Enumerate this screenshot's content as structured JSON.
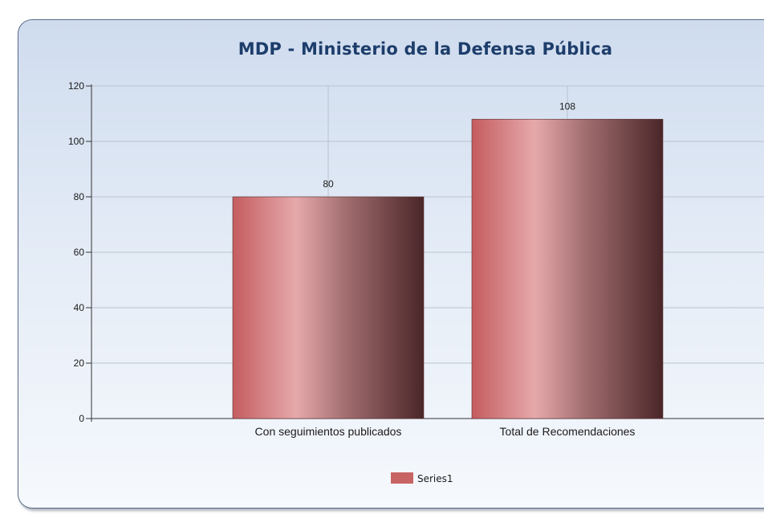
{
  "chart_data": {
    "type": "bar",
    "title": "MDP - Ministerio de la Defensa Pública",
    "categories": [
      "Con seguimientos publicados",
      "Total de Recomendaciones"
    ],
    "series": [
      {
        "name": "Series1",
        "values": [
          80,
          108
        ]
      }
    ],
    "ylim": [
      0,
      120
    ],
    "yticks": [
      0,
      20,
      40,
      60,
      80,
      100,
      120
    ],
    "grid": true,
    "legend_position": "bottom-center",
    "colors": {
      "bar_light": "#e6a9ab",
      "bar_base": "#c86464",
      "bar_dark": "#4a2628",
      "legend_swatch": "#c86464",
      "title": "#1d3d6b"
    }
  }
}
